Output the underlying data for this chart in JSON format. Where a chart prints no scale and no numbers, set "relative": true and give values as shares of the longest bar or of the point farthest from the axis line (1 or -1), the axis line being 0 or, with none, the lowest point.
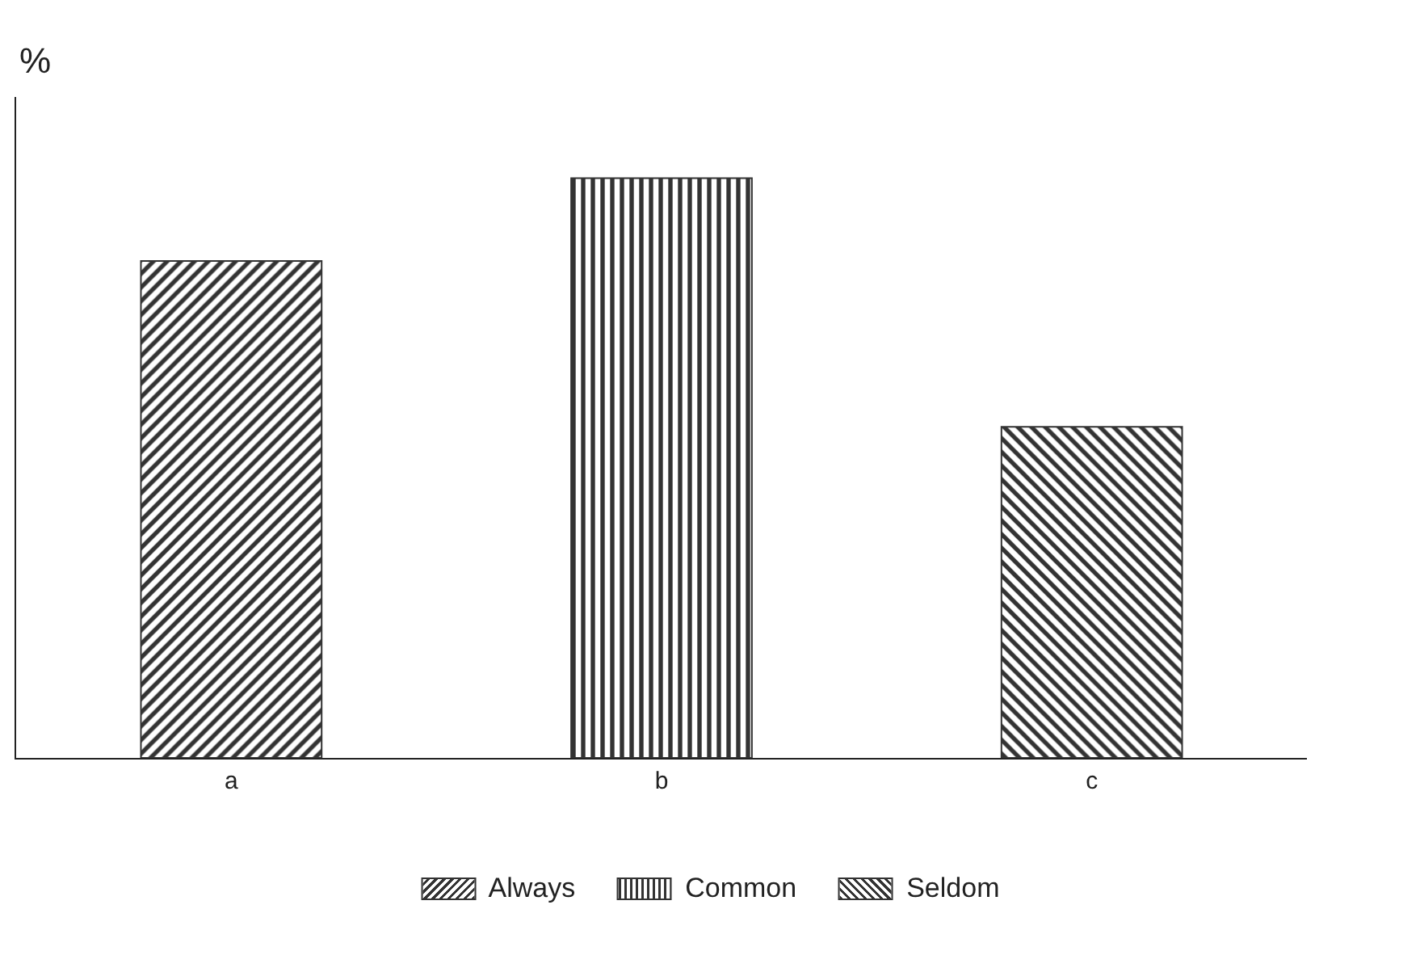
{
  "chart_data": {
    "type": "bar",
    "ylabel": "%",
    "relative": true,
    "categories": [
      "a",
      "b",
      "c"
    ],
    "series": [
      {
        "name": "Always",
        "color": "#333333",
        "values": [
          0.857,
          null,
          null
        ]
      },
      {
        "name": "Common",
        "color": "#333333",
        "values": [
          null,
          1,
          null
        ]
      },
      {
        "name": "Seldom",
        "color": "#333333",
        "values": [
          null,
          null,
          0.571
        ]
      }
    ],
    "legend": "bottom",
    "grid": false
  }
}
